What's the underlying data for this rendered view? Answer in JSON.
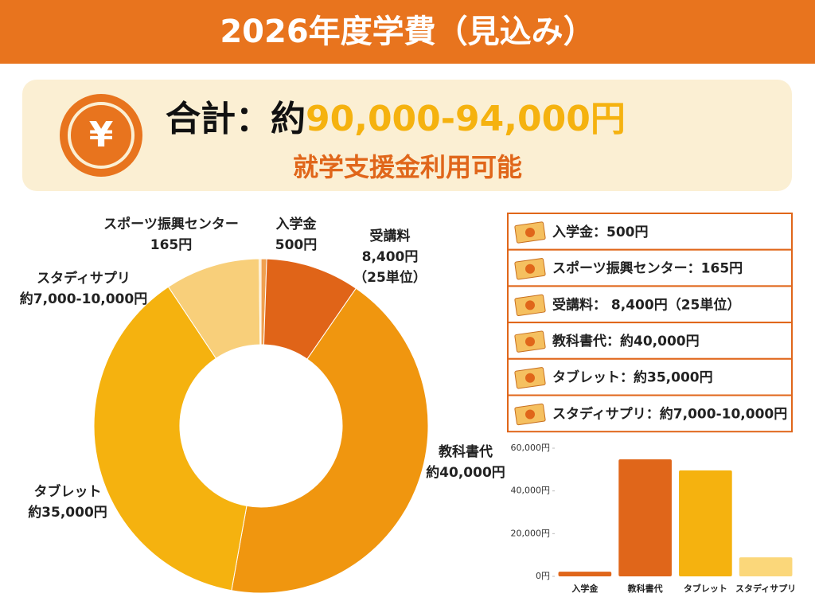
{
  "header": {
    "title": "2026年度学費（見込み）"
  },
  "summary": {
    "icon": "¥",
    "label": "合計：約",
    "amount": "90,000-94,000円",
    "note": "就学支援金利用可能"
  },
  "breakdown": {
    "items": [
      "入学金：500円",
      "スポーツ振興センター：165円",
      "受講料： 8,400円（25単位）",
      "教科書代：約40,000円",
      "タブレット：約35,000円",
      "スタディサプリ：約7,000-10,000円"
    ]
  },
  "chart_data": [
    {
      "type": "pie",
      "categories": [
        "入学金",
        "受講料",
        "教科書代",
        "タブレット",
        "スタディサプリ",
        "スポーツ振興センター"
      ],
      "values": [
        500,
        8400,
        40000,
        35000,
        8500,
        165
      ],
      "value_labels": [
        "500円",
        "8,400円",
        "約40,000円",
        "約35,000円",
        "約7,000-10,000円",
        "165円"
      ],
      "annotations": [
        "（25単位）"
      ],
      "colors": [
        "#f0a050",
        "#e06418",
        "#f0960f",
        "#f5b20f",
        "#f8cf7a",
        "#fae3b8"
      ]
    },
    {
      "type": "bar",
      "categories": [
        "入学金",
        "教科書代",
        "タブレット",
        "スタディサプリ"
      ],
      "values": [
        2200,
        54800,
        49600,
        8900
      ],
      "colors": [
        "#e0661a",
        "#e0661a",
        "#f5b20f",
        "#fbd77a"
      ],
      "ylim": [
        0,
        60000
      ],
      "yticks": [
        {
          "value": 0,
          "label": "0円"
        },
        {
          "value": 20000,
          "label": "20,000円"
        },
        {
          "value": 40000,
          "label": "40,000円"
        },
        {
          "value": 60000,
          "label": "60,000円"
        }
      ]
    }
  ]
}
